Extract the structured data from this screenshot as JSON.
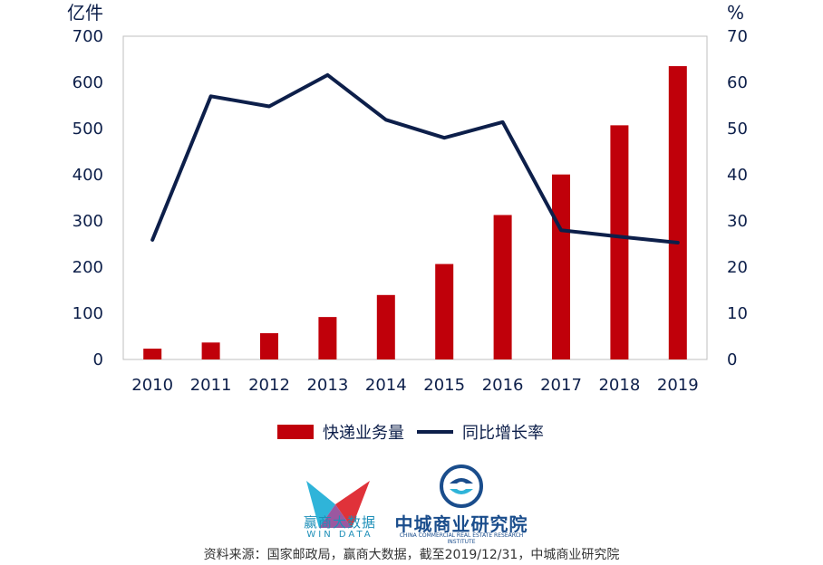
{
  "chart_data": {
    "type": "bar+line",
    "categories": [
      "2010",
      "2011",
      "2012",
      "2013",
      "2014",
      "2015",
      "2016",
      "2017",
      "2018",
      "2019"
    ],
    "series": [
      {
        "name": "快递业务量",
        "type": "bar",
        "axis": "left",
        "values": [
          23.4,
          36.7,
          56.9,
          91.9,
          139.6,
          206.7,
          312.8,
          400.6,
          507.1,
          635.2
        ]
      },
      {
        "name": "同比增长率",
        "type": "line",
        "axis": "right",
        "values": [
          25.9,
          57.0,
          54.8,
          61.6,
          51.9,
          48.0,
          51.4,
          28.0,
          26.6,
          25.3
        ]
      }
    ],
    "y_left": {
      "unit": "亿件",
      "lim": [
        0,
        700
      ],
      "ticks": [
        0,
        100,
        200,
        300,
        400,
        500,
        600,
        700
      ]
    },
    "y_right": {
      "unit": "%",
      "lim": [
        0,
        70
      ],
      "ticks": [
        0,
        10,
        20,
        30,
        40,
        50,
        60,
        70
      ]
    },
    "legend_position": "bottom",
    "grid": false,
    "colors": {
      "bar": "#c0000a",
      "line": "#0d1f4a",
      "axis": "#bfbfbf"
    }
  },
  "logos": {
    "windata_cn": "赢商大数据",
    "windata_en": "WIN DATA",
    "ccreri_cn": "中城商业研究院",
    "ccreri_en": "CHINA COMMERCIAL REAL ESTATE RESEARCH INSTITUTE"
  },
  "source": "资料来源：国家邮政局，赢商大数据，截至2019/12/31，中城商业研究院"
}
